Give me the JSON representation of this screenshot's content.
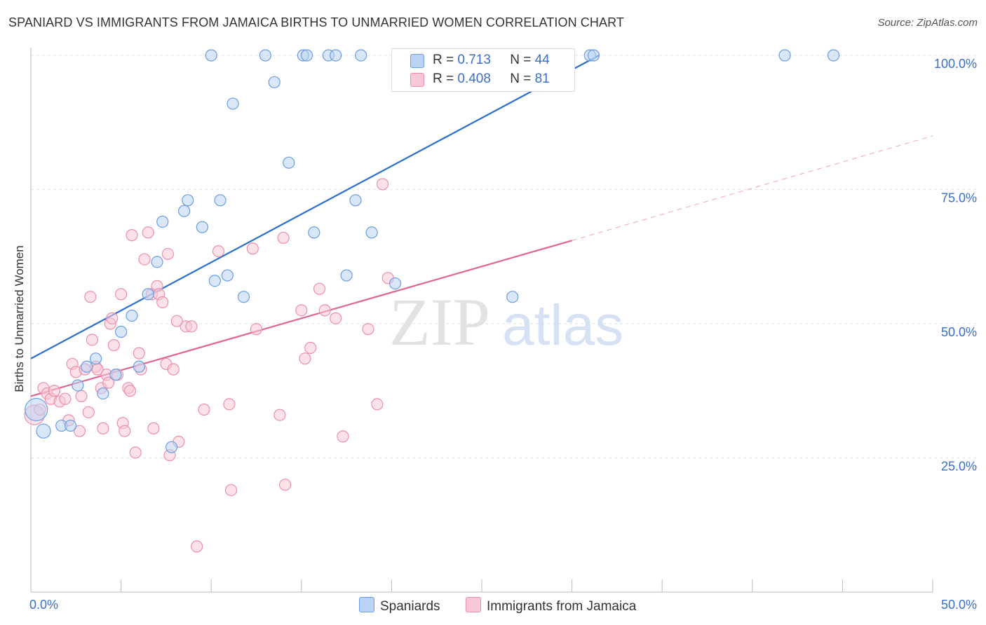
{
  "title": "SPANIARD VS IMMIGRANTS FROM JAMAICA BIRTHS TO UNMARRIED WOMEN CORRELATION CHART",
  "source": "Source: ZipAtlas.com",
  "watermark": {
    "zip": "ZIP",
    "atlas": "atlas"
  },
  "colors": {
    "spaniards": "#6a9ee0",
    "spaniards_fill": "#bcd3f3",
    "spaniards_line": "#2a6fcc",
    "jamaica": "#ec8fab",
    "jamaica_fill": "#f8c8d6",
    "jamaica_line": "#e06690",
    "axis_label": "#3b6fc7"
  },
  "legend": {
    "r1_label": "R = ",
    "r1_value": "0.713",
    "n1_label": "N = ",
    "n1_value": "44",
    "r2_label": "R = ",
    "r2_value": "0.408",
    "n2_label": "N = ",
    "n2_value": "81"
  },
  "bottom_legend": {
    "series1": "Spaniards",
    "series2": "Immigrants from Jamaica"
  },
  "chart_data": {
    "type": "scatter",
    "title": "SPANIARD VS IMMIGRANTS FROM JAMAICA BIRTHS TO UNMARRIED WOMEN CORRELATION CHART",
    "xlabel": "",
    "ylabel": "Births to Unmarried Women",
    "xlim": [
      0,
      50
    ],
    "ylim": [
      0,
      102
    ],
    "x_tick_labels": [
      "0.0%",
      "50.0%"
    ],
    "y_ticks": [
      25,
      50,
      75,
      100
    ],
    "y_tick_labels": [
      "25.0%",
      "50.0%",
      "75.0%",
      "100.0%"
    ],
    "grid": true,
    "series": [
      {
        "name": "Spaniards",
        "r": 0.713,
        "n": 44,
        "trend": {
          "x0": 0,
          "y0": 43.5,
          "x1": 31.5,
          "y1": 100,
          "dashed_to": null
        },
        "points": [
          [
            0.3,
            34,
            16
          ],
          [
            0.7,
            30,
            10
          ],
          [
            1.7,
            31,
            8
          ],
          [
            2.2,
            31,
            8
          ],
          [
            2.6,
            38.5,
            8
          ],
          [
            3.1,
            42,
            8
          ],
          [
            3.6,
            43.5,
            8
          ],
          [
            4.0,
            37,
            8
          ],
          [
            4.7,
            40.5,
            8
          ],
          [
            5.0,
            48.5,
            8
          ],
          [
            5.6,
            51.5,
            8
          ],
          [
            6.0,
            42,
            8
          ],
          [
            6.5,
            55.5,
            8
          ],
          [
            7.0,
            61.5,
            8
          ],
          [
            7.3,
            69,
            8
          ],
          [
            7.8,
            27,
            8
          ],
          [
            8.5,
            71,
            8
          ],
          [
            8.7,
            73,
            8
          ],
          [
            9.5,
            68,
            8
          ],
          [
            10.0,
            100,
            8
          ],
          [
            10.2,
            58,
            8
          ],
          [
            10.5,
            73,
            8
          ],
          [
            10.9,
            59,
            8
          ],
          [
            11.2,
            91,
            8
          ],
          [
            11.8,
            55,
            8
          ],
          [
            13.0,
            100,
            8
          ],
          [
            13.5,
            95,
            8
          ],
          [
            14.3,
            80,
            8
          ],
          [
            15.1,
            100,
            8
          ],
          [
            15.3,
            100,
            8
          ],
          [
            15.7,
            67,
            8
          ],
          [
            16.5,
            100,
            8
          ],
          [
            16.9,
            100,
            8
          ],
          [
            17.5,
            59,
            8
          ],
          [
            18.0,
            73,
            8
          ],
          [
            18.3,
            100,
            8
          ],
          [
            18.9,
            67,
            8
          ],
          [
            20.2,
            57.5,
            8
          ],
          [
            26.7,
            55,
            8
          ],
          [
            31.0,
            100,
            8
          ],
          [
            31.2,
            100,
            8
          ],
          [
            41.8,
            100,
            8
          ],
          [
            44.5,
            100,
            8
          ]
        ]
      },
      {
        "name": "Immigrants from Jamaica",
        "r": 0.408,
        "n": 81,
        "trend": {
          "x0": 0,
          "y0": 36.5,
          "x1": 30,
          "y1": 65.5,
          "dashed_x1": 50,
          "dashed_y1": 85
        },
        "points": [
          [
            0.2,
            33,
            14
          ],
          [
            0.5,
            34,
            8
          ],
          [
            0.7,
            38,
            8
          ],
          [
            0.9,
            37,
            8
          ],
          [
            1.1,
            36,
            8
          ],
          [
            1.3,
            37.5,
            8
          ],
          [
            1.6,
            35.5,
            8
          ],
          [
            1.9,
            36,
            8
          ],
          [
            2.1,
            32,
            8
          ],
          [
            2.3,
            42.5,
            8
          ],
          [
            2.5,
            41,
            8
          ],
          [
            2.7,
            30,
            8
          ],
          [
            2.8,
            36.5,
            8
          ],
          [
            3.0,
            41.5,
            8
          ],
          [
            3.2,
            33.5,
            8
          ],
          [
            3.3,
            55,
            8
          ],
          [
            3.4,
            47,
            8
          ],
          [
            3.6,
            42,
            8
          ],
          [
            3.7,
            41.5,
            8
          ],
          [
            3.9,
            38,
            8
          ],
          [
            4.0,
            30.5,
            8
          ],
          [
            4.2,
            40.5,
            8
          ],
          [
            4.3,
            39,
            8
          ],
          [
            4.4,
            50,
            8
          ],
          [
            4.5,
            51,
            8
          ],
          [
            4.6,
            46,
            8
          ],
          [
            4.8,
            40.5,
            8
          ],
          [
            5.0,
            55.5,
            8
          ],
          [
            5.1,
            31.5,
            8
          ],
          [
            5.2,
            30,
            8
          ],
          [
            5.4,
            38,
            8
          ],
          [
            5.5,
            37.5,
            8
          ],
          [
            5.6,
            66.5,
            8
          ],
          [
            5.8,
            26,
            8
          ],
          [
            6.0,
            44.5,
            8
          ],
          [
            6.1,
            41.5,
            8
          ],
          [
            6.3,
            62,
            8
          ],
          [
            6.5,
            67,
            8
          ],
          [
            6.7,
            55.5,
            8
          ],
          [
            6.8,
            30.5,
            8
          ],
          [
            7.0,
            57,
            8
          ],
          [
            7.1,
            55.5,
            8
          ],
          [
            7.3,
            54,
            8
          ],
          [
            7.5,
            42.5,
            8
          ],
          [
            7.6,
            63,
            8
          ],
          [
            7.7,
            25.5,
            8
          ],
          [
            7.9,
            41.5,
            8
          ],
          [
            8.1,
            50.5,
            8
          ],
          [
            8.2,
            28,
            8
          ],
          [
            8.6,
            49.5,
            8
          ],
          [
            8.9,
            49.5,
            8
          ],
          [
            9.2,
            8.5,
            8
          ],
          [
            9.6,
            34,
            8
          ],
          [
            10.4,
            63.5,
            8
          ],
          [
            11.0,
            35,
            8
          ],
          [
            11.1,
            19,
            8
          ],
          [
            12.3,
            64,
            8
          ],
          [
            12.5,
            49,
            8
          ],
          [
            13.8,
            33,
            8
          ],
          [
            14.0,
            66,
            8
          ],
          [
            14.1,
            20,
            8
          ],
          [
            15.0,
            52.5,
            8
          ],
          [
            15.2,
            43.5,
            8
          ],
          [
            15.5,
            45.5,
            8
          ],
          [
            16.0,
            56.5,
            8
          ],
          [
            16.3,
            52.5,
            8
          ],
          [
            16.9,
            51,
            8
          ],
          [
            17.3,
            29,
            8
          ],
          [
            18.7,
            49,
            8
          ],
          [
            19.2,
            35,
            8
          ],
          [
            19.5,
            76,
            8
          ],
          [
            19.8,
            58.5,
            8
          ],
          [
            27.5,
            100,
            8
          ]
        ]
      }
    ]
  }
}
